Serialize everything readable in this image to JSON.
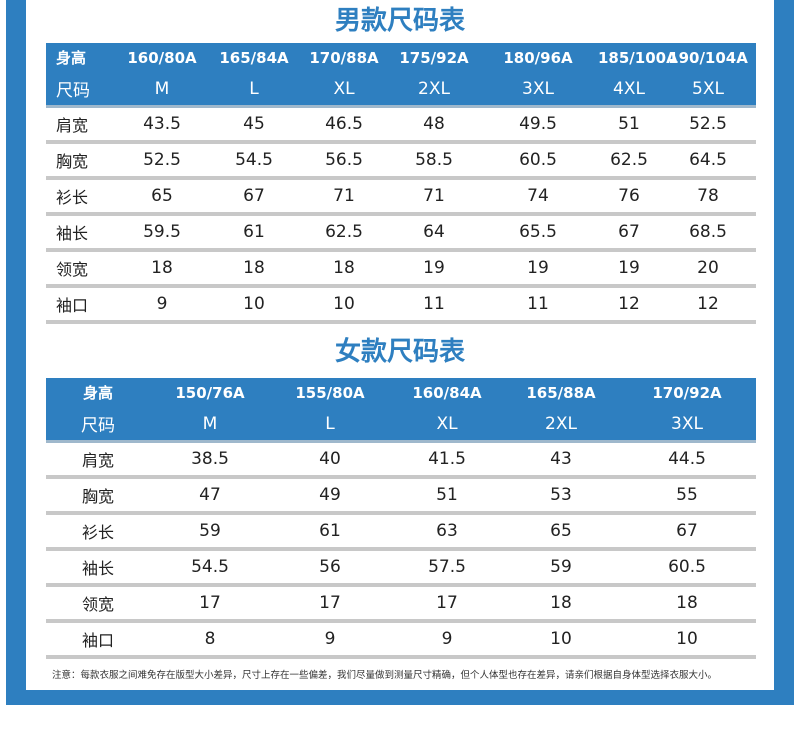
{
  "men": {
    "title": "男款尺码表",
    "header_heights": [
      "身高",
      "160/80A",
      "165/84A",
      "170/88A",
      "175/92A",
      "180/96A",
      "185/100A",
      "190/104A"
    ],
    "header_sizes": [
      "尺码",
      "M",
      "L",
      "XL",
      "2XL",
      "3XL",
      "4XL",
      "5XL"
    ],
    "rows": [
      [
        "肩宽",
        "43.5",
        "45",
        "46.5",
        "48",
        "49.5",
        "51",
        "52.5"
      ],
      [
        "胸宽",
        "52.5",
        "54.5",
        "56.5",
        "58.5",
        "60.5",
        "62.5",
        "64.5"
      ],
      [
        "衫长",
        "65",
        "67",
        "71",
        "71",
        "74",
        "76",
        "78"
      ],
      [
        "袖长",
        "59.5",
        "61",
        "62.5",
        "64",
        "65.5",
        "67",
        "68.5"
      ],
      [
        "领宽",
        "18",
        "18",
        "18",
        "19",
        "19",
        "19",
        "20"
      ],
      [
        "袖口",
        "9",
        "10",
        "10",
        "11",
        "11",
        "12",
        "12"
      ]
    ]
  },
  "women": {
    "title": "女款尺码表",
    "header_heights": [
      "身高",
      "150/76A",
      "155/80A",
      "160/84A",
      "165/88A",
      "170/92A"
    ],
    "header_sizes": [
      "尺码",
      "M",
      "L",
      "XL",
      "2XL",
      "3XL"
    ],
    "rows": [
      [
        "肩宽",
        "38.5",
        "40",
        "41.5",
        "43",
        "44.5"
      ],
      [
        "胸宽",
        "47",
        "49",
        "51",
        "53",
        "55"
      ],
      [
        "衫长",
        "59",
        "61",
        "63",
        "65",
        "67"
      ],
      [
        "袖长",
        "54.5",
        "56",
        "57.5",
        "59",
        "60.5"
      ],
      [
        "领宽",
        "17",
        "17",
        "17",
        "18",
        "18"
      ],
      [
        "袖口",
        "8",
        "9",
        "9",
        "10",
        "10"
      ]
    ]
  },
  "note": "注意：每款衣服之间难免存在版型大小差异，尺寸上存在一些偏差，我们尽量做到测量尺寸精确，但个人体型也存在差异，请亲们根据自身体型选择衣服大小。",
  "colors": {
    "header_blue": "#2e7fc0",
    "row_divider": "#c8c8c8",
    "frame": "#2e7fc0"
  }
}
